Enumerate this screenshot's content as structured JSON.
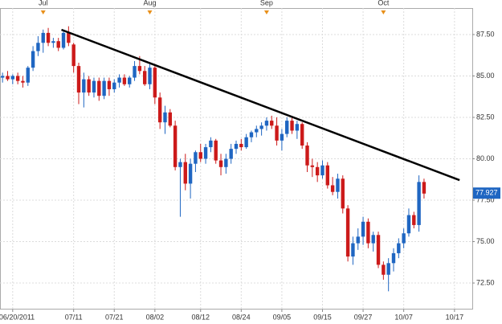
{
  "chart_data": {
    "type": "candlestick",
    "categories": [
      null,
      null,
      "06/20/2011",
      null,
      null,
      null,
      null,
      null,
      null,
      null,
      null,
      null,
      null,
      null,
      "07/11",
      null,
      null,
      null,
      null,
      null,
      null,
      null,
      "07/21",
      null,
      null,
      null,
      null,
      null,
      null,
      null,
      "08/02",
      null,
      null,
      null,
      null,
      null,
      null,
      null,
      null,
      "08/12",
      null,
      null,
      null,
      null,
      null,
      null,
      null,
      "08/24",
      null,
      null,
      null,
      null,
      null,
      null,
      null,
      "09/05",
      null,
      null,
      null,
      null,
      null,
      null,
      null,
      "09/15",
      null,
      null,
      null,
      null,
      null,
      null,
      null,
      "09/27",
      null,
      null,
      null,
      null,
      null,
      null,
      null,
      "10/07",
      null,
      null,
      null,
      null,
      null,
      null,
      null,
      null,
      null,
      "10/17",
      null,
      null,
      null
    ],
    "month_labels": [
      null,
      null,
      null,
      null,
      null,
      null,
      null,
      null,
      "Jul",
      null,
      null,
      null,
      null,
      null,
      null,
      null,
      null,
      null,
      null,
      null,
      null,
      null,
      null,
      null,
      null,
      null,
      null,
      null,
      null,
      "Aug",
      null,
      null,
      null,
      null,
      null,
      null,
      null,
      null,
      null,
      null,
      null,
      null,
      null,
      null,
      null,
      null,
      null,
      null,
      null,
      null,
      null,
      null,
      "Sep",
      null,
      null,
      null,
      null,
      null,
      null,
      null,
      null,
      null,
      null,
      null,
      null,
      null,
      null,
      null,
      null,
      null,
      null,
      null,
      null,
      null,
      null,
      "Oct",
      null,
      null,
      null,
      null,
      null,
      null,
      null,
      null,
      null,
      null,
      null,
      null,
      null,
      null,
      null,
      null,
      null
    ],
    "open": [
      84.9,
      85.0,
      84.8,
      85.0,
      84.7,
      84.6,
      85.5,
      86.5,
      87.0,
      87.6,
      87.0,
      87.1,
      86.7,
      87.6,
      86.9,
      85.6,
      84.0,
      84.8,
      84.0,
      84.7,
      83.8,
      84.7,
      84.2,
      84.6,
      84.9,
      84.5,
      84.9,
      85.6,
      85.3,
      84.5,
      85.5,
      83.7,
      82.2,
      82.8,
      82.0,
      79.5,
      79.8,
      78.5,
      79.7,
      80.4,
      80.0,
      80.7,
      81.1,
      79.9,
      79.5,
      80.0,
      80.6,
      80.9,
      80.7,
      81.3,
      81.6,
      81.8,
      82.0,
      82.3,
      82.0,
      81.1,
      81.5,
      82.3,
      81.7,
      82.1,
      80.8,
      79.6,
      79.5,
      79.0,
      79.6,
      78.4,
      78.0,
      78.8,
      77.0,
      74.1,
      74.9,
      75.3,
      76.2,
      74.9,
      75.4,
      73.6,
      73.0,
      73.7,
      74.3,
      74.9,
      75.5,
      76.6,
      76.0,
      78.6,
      null,
      null,
      null,
      null,
      null,
      null,
      null,
      null,
      null
    ],
    "high": [
      85.2,
      85.3,
      85.1,
      85.2,
      85.0,
      85.6,
      86.8,
      87.4,
      87.8,
      87.9,
      87.3,
      87.3,
      87.8,
      88.0,
      87.0,
      85.8,
      85.2,
      85.0,
      84.9,
      84.9,
      84.9,
      84.9,
      84.8,
      85.1,
      85.1,
      85.0,
      85.9,
      86.2,
      85.6,
      85.7,
      85.6,
      84.0,
      83.2,
      83.0,
      82.3,
      80.0,
      80.3,
      80.0,
      80.5,
      80.9,
      80.9,
      81.3,
      81.2,
      80.3,
      80.3,
      80.9,
      81.1,
      81.2,
      81.5,
      81.7,
      82.0,
      82.2,
      82.5,
      82.6,
      82.5,
      81.8,
      82.5,
      82.5,
      82.3,
      82.2,
      81.0,
      80.0,
      79.8,
      79.9,
      79.8,
      78.9,
      79.1,
      79.0,
      77.2,
      75.3,
      75.8,
      76.5,
      76.4,
      75.6,
      75.6,
      73.8,
      74.0,
      74.6,
      75.2,
      75.8,
      77.0,
      76.8,
      79.0,
      78.8,
      null,
      null,
      null,
      null,
      null,
      null,
      null,
      null,
      null
    ],
    "low": [
      84.6,
      84.7,
      84.5,
      84.5,
      84.3,
      84.4,
      85.3,
      86.2,
      86.4,
      86.8,
      86.7,
      86.5,
      86.6,
      86.8,
      85.2,
      83.3,
      83.1,
      83.8,
      83.7,
      83.5,
      83.6,
      83.8,
      84.0,
      84.3,
      84.4,
      84.3,
      84.7,
      85.1,
      84.4,
      84.2,
      83.3,
      81.8,
      81.5,
      81.9,
      79.3,
      76.5,
      78.1,
      77.6,
      79.2,
      79.8,
      79.7,
      80.4,
      79.7,
      79.0,
      79.1,
      79.7,
      80.3,
      80.5,
      80.6,
      81.0,
      81.3,
      81.4,
      81.7,
      81.8,
      80.8,
      80.5,
      81.3,
      81.5,
      81.2,
      80.6,
      79.2,
      78.9,
      78.6,
      78.8,
      78.2,
      77.8,
      77.6,
      76.7,
      73.8,
      73.6,
      74.5,
      74.8,
      74.6,
      74.4,
      73.4,
      72.7,
      72.0,
      73.2,
      74.0,
      74.6,
      75.3,
      75.8,
      75.6,
      77.6,
      null,
      null,
      null,
      null,
      null,
      null,
      null,
      null,
      null
    ],
    "close": [
      85.0,
      84.8,
      85.0,
      84.7,
      84.6,
      85.5,
      86.5,
      87.0,
      87.6,
      87.0,
      87.1,
      86.7,
      87.6,
      87.0,
      85.6,
      84.0,
      84.8,
      84.0,
      84.7,
      83.8,
      84.7,
      84.2,
      84.6,
      84.9,
      84.5,
      84.9,
      85.6,
      85.3,
      84.5,
      85.5,
      83.7,
      82.2,
      82.8,
      82.0,
      79.5,
      79.8,
      78.5,
      79.7,
      80.4,
      80.0,
      80.7,
      81.1,
      79.9,
      79.5,
      80.0,
      80.6,
      80.9,
      80.7,
      81.3,
      81.6,
      81.8,
      82.0,
      82.3,
      82.0,
      81.1,
      81.5,
      82.3,
      81.7,
      82.1,
      80.8,
      79.6,
      79.5,
      79.0,
      79.6,
      78.4,
      78.0,
      78.8,
      77.0,
      74.1,
      74.9,
      75.3,
      76.2,
      74.9,
      75.4,
      73.6,
      73.0,
      73.7,
      74.3,
      74.9,
      75.5,
      76.6,
      76.0,
      78.6,
      77.9,
      null,
      null,
      null,
      null,
      null,
      null,
      null,
      null,
      null
    ],
    "up_color": "#1f66c2",
    "down_color": "#cc1a1a",
    "ylim": [
      70.9,
      89.1
    ],
    "yticks": [
      {
        "value": 72.5,
        "label": "72.50"
      },
      {
        "value": 75,
        "label": "75.00"
      },
      {
        "value": 77.5,
        "label": "77.50"
      },
      {
        "value": 80,
        "label": "80.00"
      },
      {
        "value": 82.5,
        "label": "82.50"
      },
      {
        "value": 85,
        "label": "85.00"
      },
      {
        "value": 87.5,
        "label": "87.50"
      }
    ],
    "grid": true,
    "last_price": {
      "value": 77.927,
      "label": "77.927"
    },
    "trendline": {
      "x": [
        11.6,
        90
      ],
      "y": [
        87.79,
        78.71
      ],
      "color": "#000000"
    }
  }
}
